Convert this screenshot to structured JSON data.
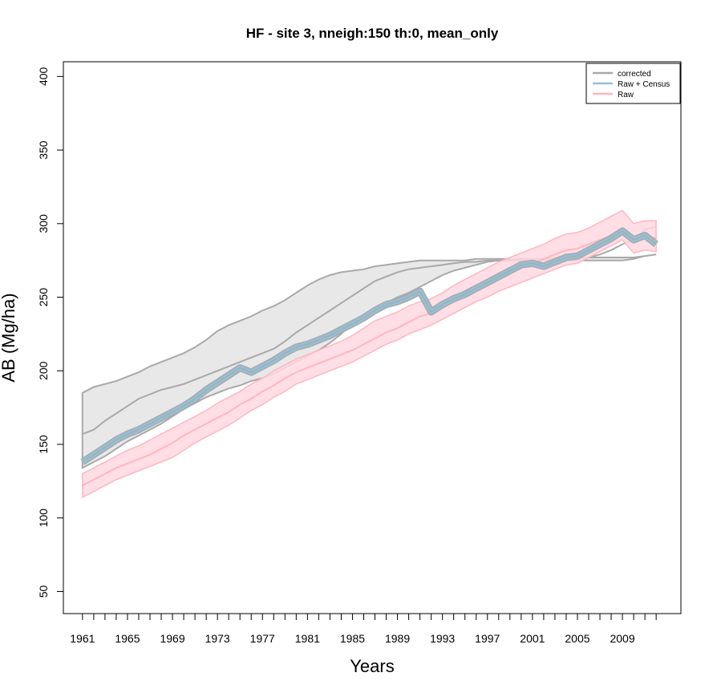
{
  "chart_data": {
    "type": "line",
    "title": "HF - site 3, nneigh:150 th:0, mean_only",
    "xlabel": "Years",
    "ylabel": "AB (Mg/ha)",
    "xlim": [
      1959.3,
      2014.2
    ],
    "ylim": [
      35,
      410
    ],
    "x_ticks": [
      1961,
      1962,
      1963,
      1964,
      1965,
      1966,
      1967,
      1968,
      1969,
      1970,
      1971,
      1972,
      1973,
      1974,
      1975,
      1976,
      1977,
      1978,
      1979,
      1980,
      1981,
      1982,
      1983,
      1984,
      1985,
      1986,
      1987,
      1988,
      1989,
      1990,
      1991,
      1992,
      1993,
      1994,
      1995,
      1996,
      1997,
      1998,
      1999,
      2000,
      2001,
      2002,
      2003,
      2004,
      2005,
      2006,
      2007,
      2008,
      2009,
      2010,
      2011,
      2012
    ],
    "x_tick_labels": [
      "1961",
      "1965",
      "1969",
      "1973",
      "1977",
      "1981",
      "1985",
      "1989",
      "1993",
      "1997",
      "2001",
      "2005",
      "2009"
    ],
    "y_ticks": [
      50,
      100,
      150,
      200,
      250,
      300,
      350,
      400
    ],
    "y_tick_labels": [
      "50",
      "100",
      "150",
      "200",
      "250",
      "300",
      "350",
      "400"
    ],
    "legend_position": "top-right",
    "legend": [
      "corrected",
      "Raw + Census",
      "Raw"
    ],
    "x": [
      1961,
      1962,
      1963,
      1964,
      1965,
      1966,
      1967,
      1968,
      1969,
      1970,
      1971,
      1972,
      1973,
      1974,
      1975,
      1976,
      1977,
      1978,
      1979,
      1980,
      1981,
      1982,
      1983,
      1984,
      1985,
      1986,
      1987,
      1988,
      1989,
      1990,
      1991,
      1992,
      1993,
      1994,
      1995,
      1996,
      1997,
      1998,
      1999,
      2000,
      2001,
      2002,
      2003,
      2004,
      2005,
      2006,
      2007,
      2008,
      2009,
      2010,
      2011,
      2012
    ],
    "series": [
      {
        "name": "corrected",
        "color": "#a9a9a9",
        "fill": "#e8e8e8",
        "upper": [
          185,
          189,
          191,
          193,
          196,
          199,
          203,
          206,
          209,
          212,
          216,
          221,
          227,
          231,
          234,
          237,
          241,
          244,
          248,
          253,
          258,
          262,
          265,
          267,
          268,
          269,
          271,
          272,
          273,
          274,
          275,
          275,
          275,
          275,
          275,
          276,
          276,
          276,
          276,
          276,
          276,
          276,
          277,
          277,
          277,
          277,
          277,
          277,
          277,
          277,
          278,
          279
        ],
        "mean": [
          157,
          160,
          166,
          171,
          176,
          181,
          184,
          187,
          189,
          191,
          194,
          197,
          200,
          203,
          206,
          209,
          212,
          215,
          220,
          226,
          231,
          236,
          241,
          246,
          251,
          256,
          261,
          264,
          267,
          269,
          270,
          271,
          272,
          273,
          274,
          274,
          275,
          275,
          275,
          276,
          276,
          276,
          276,
          276,
          276,
          277,
          279,
          282,
          286,
          289,
          296,
          298
        ],
        "lower": [
          134,
          138,
          142,
          147,
          152,
          156,
          160,
          164,
          169,
          174,
          178,
          182,
          185,
          188,
          190,
          193,
          195,
          198,
          202,
          206,
          210,
          214,
          219,
          225,
          233,
          237,
          242,
          246,
          250,
          253,
          257,
          261,
          265,
          268,
          270,
          272,
          274,
          275,
          275,
          275,
          275,
          275,
          275,
          275,
          275,
          275,
          275,
          275,
          275,
          276,
          278,
          279
        ]
      },
      {
        "name": "Raw + Census",
        "color": "#92c1d8",
        "edge": "#a9a9a9",
        "mean": [
          138,
          143,
          148,
          153,
          157,
          160,
          164,
          168,
          172,
          176,
          181,
          187,
          192,
          197,
          202,
          199,
          203,
          207,
          212,
          216,
          218,
          221,
          224,
          228,
          232,
          236,
          241,
          245,
          247,
          250,
          254,
          240,
          245,
          249,
          252,
          256,
          260,
          264,
          268,
          272,
          273,
          271,
          274,
          277,
          278,
          282,
          286,
          290,
          295,
          289,
          292,
          286
        ]
      },
      {
        "name": "Raw",
        "color": "#ffb6c1",
        "fill": "#ffd8e0",
        "upper": [
          130,
          134,
          138,
          142,
          146,
          149,
          153,
          157,
          161,
          165,
          169,
          173,
          178,
          182,
          186,
          191,
          195,
          200,
          204,
          208,
          211,
          214,
          217,
          220,
          224,
          229,
          234,
          237,
          240,
          244,
          247,
          249,
          253,
          258,
          262,
          266,
          270,
          274,
          277,
          280,
          283,
          286,
          290,
          293,
          294,
          297,
          301,
          305,
          309,
          300,
          302,
          302
        ],
        "mean": [
          122,
          126,
          130,
          134,
          137,
          140,
          143,
          147,
          151,
          156,
          160,
          164,
          168,
          172,
          177,
          181,
          186,
          190,
          195,
          199,
          202,
          205,
          208,
          211,
          214,
          218,
          222,
          226,
          229,
          233,
          237,
          239,
          243,
          247,
          251,
          255,
          259,
          263,
          267,
          270,
          273,
          276,
          279,
          282,
          283,
          286,
          289,
          292,
          296,
          290,
          292,
          290
        ],
        "lower": [
          114,
          118,
          122,
          126,
          129,
          132,
          135,
          138,
          141,
          146,
          151,
          155,
          159,
          163,
          168,
          173,
          177,
          182,
          186,
          191,
          194,
          197,
          200,
          203,
          206,
          210,
          214,
          218,
          221,
          225,
          228,
          231,
          235,
          239,
          243,
          247,
          250,
          254,
          257,
          260,
          263,
          266,
          269,
          272,
          273,
          277,
          281,
          285,
          289,
          280,
          282,
          281
        ]
      }
    ]
  }
}
